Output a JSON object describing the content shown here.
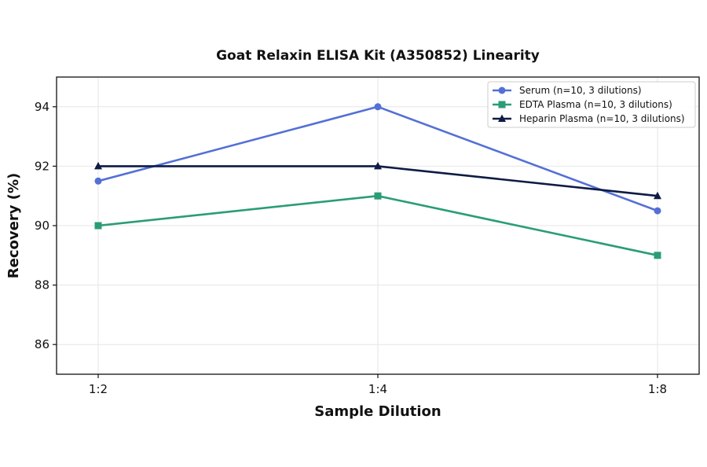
{
  "chart_data": {
    "type": "line",
    "title": "Goat Relaxin ELISA Kit (A350852) Linearity",
    "xlabel": "Sample Dilution",
    "ylabel": "Recovery (%)",
    "categories": [
      "1:2",
      "1:4",
      "1:8"
    ],
    "ylim": [
      85,
      95
    ],
    "yticks": [
      86,
      88,
      90,
      92,
      94
    ],
    "grid": true,
    "legend_position": "top-right",
    "series": [
      {
        "name": "Serum (n=10, 3 dilutions)",
        "values": [
          91.5,
          94.0,
          90.5
        ],
        "color": "#5470d6",
        "marker": "circle"
      },
      {
        "name": "EDTA Plasma (n=10, 3 dilutions)",
        "values": [
          90.0,
          91.0,
          89.0
        ],
        "color": "#2a9d76",
        "marker": "square"
      },
      {
        "name": "Heparin Plasma (n=10, 3 dilutions)",
        "values": [
          92.0,
          92.0,
          91.0
        ],
        "color": "#0d1b45",
        "marker": "triangle"
      }
    ]
  }
}
